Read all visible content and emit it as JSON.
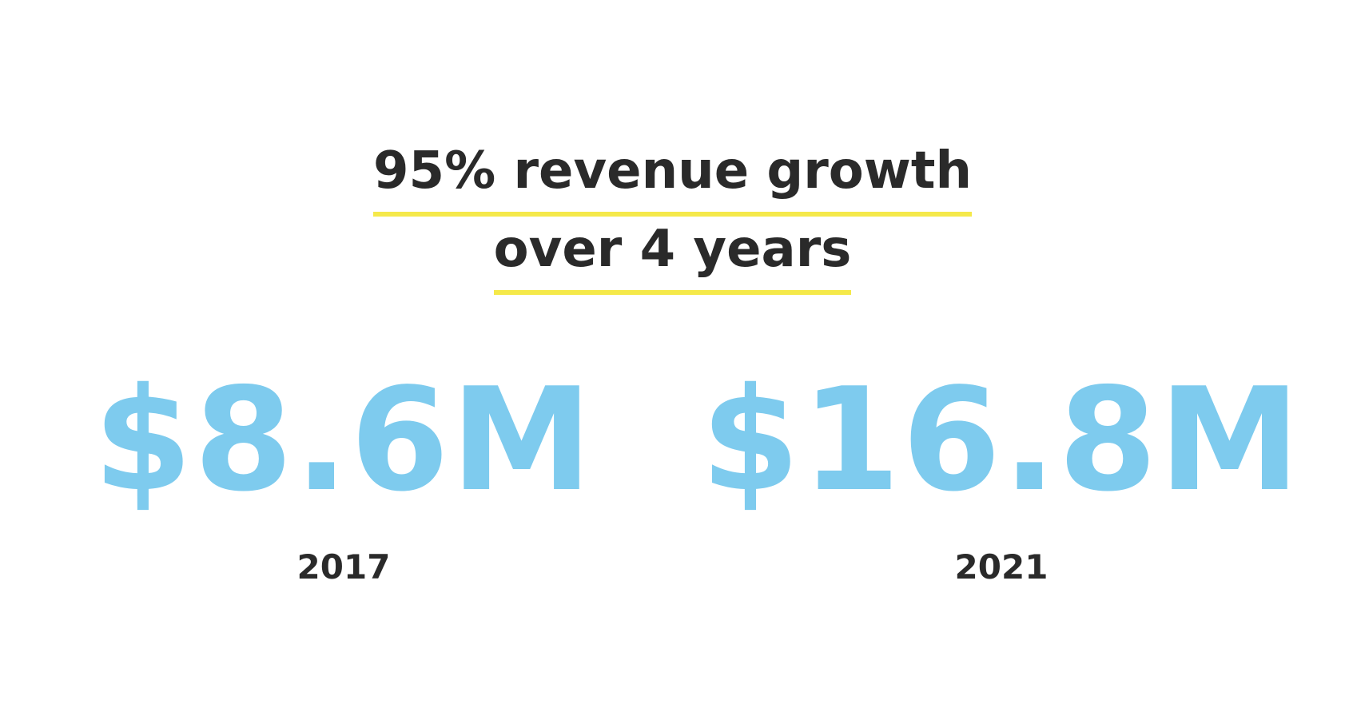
{
  "headline": {
    "line1": "95% revenue growth",
    "line2": "over 4 years"
  },
  "stats": [
    {
      "amount": "$8.6M",
      "year": "2017"
    },
    {
      "amount": "$16.8M",
      "year": "2021"
    }
  ],
  "colors": {
    "amount": "#7ecbee",
    "text": "#2a2a2a",
    "underline": "#f5e94a",
    "background": "#ffffff"
  }
}
